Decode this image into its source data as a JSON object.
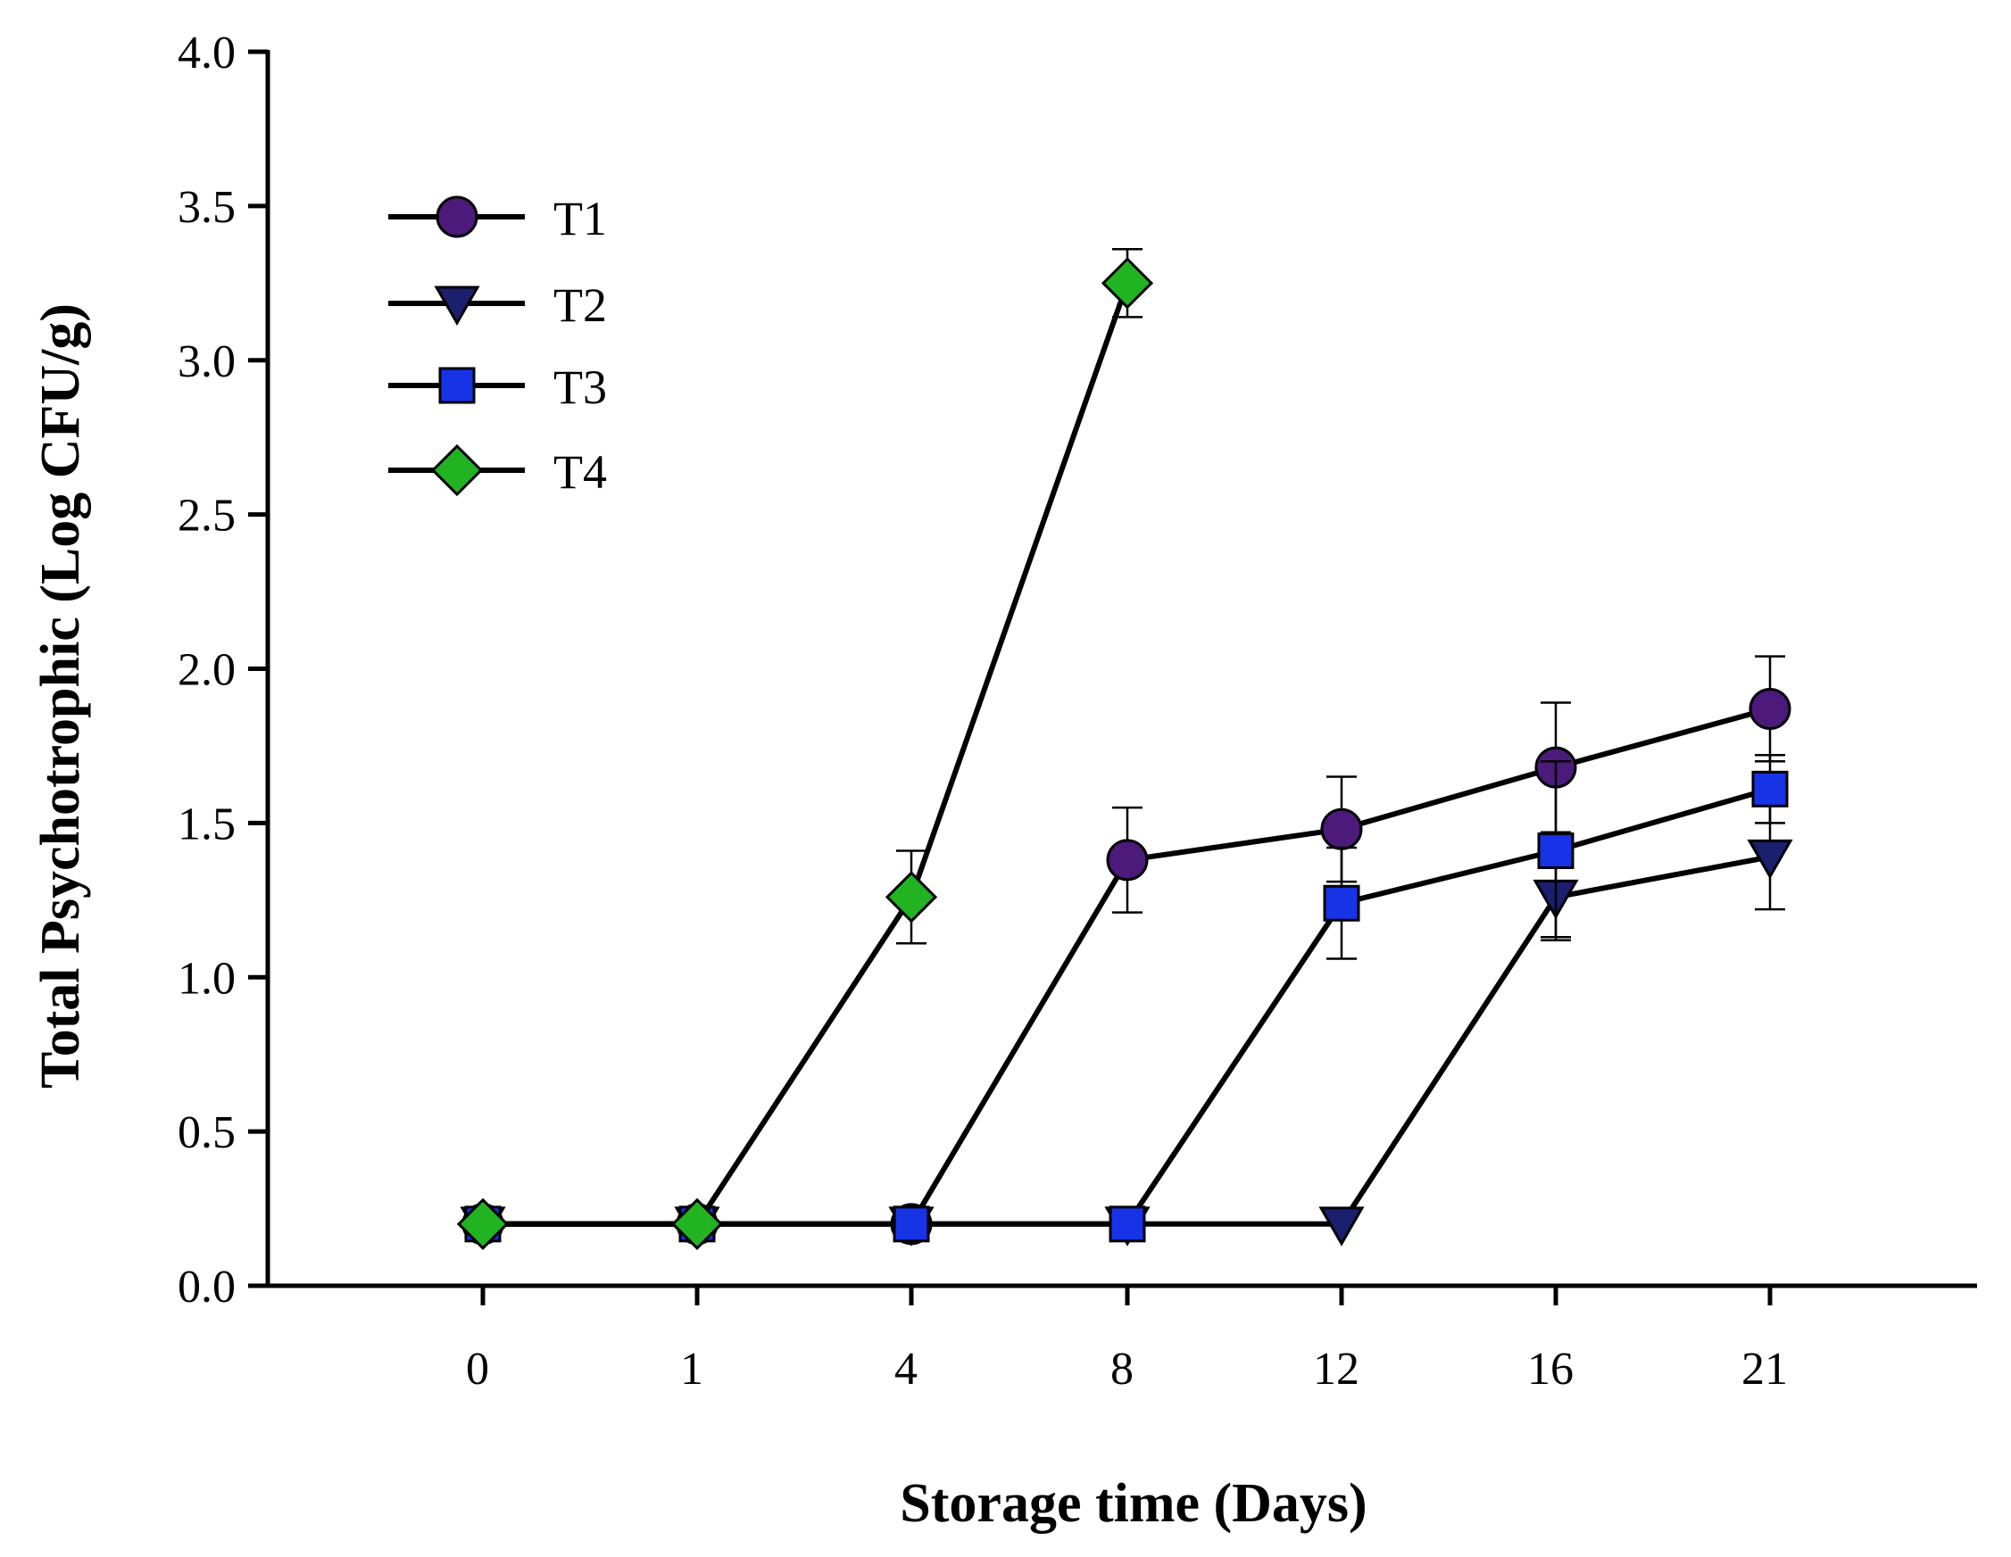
{
  "chart_data": {
    "type": "line",
    "title": "",
    "xlabel": "Storage time (Days)",
    "ylabel": "Total Psychotrophic (Log CFU/g)",
    "categories": [
      "0",
      "1",
      "4",
      "8",
      "12",
      "16",
      "21"
    ],
    "ylim": [
      0,
      4.0
    ],
    "yticks": [
      "0.0",
      "0.5",
      "1.0",
      "1.5",
      "2.0",
      "2.5",
      "3.0",
      "3.5",
      "4.0"
    ],
    "grid": false,
    "legend_position": "top-left",
    "series": [
      {
        "name": "T1",
        "marker": "circle",
        "color": "#4b1a7a",
        "values": [
          0.2,
          0.2,
          0.2,
          1.38,
          1.48,
          1.68,
          1.87
        ],
        "errors": [
          null,
          null,
          null,
          0.17,
          0.17,
          0.21,
          0.17
        ]
      },
      {
        "name": "T2",
        "marker": "triangle-down",
        "color": "#1a1f6e",
        "values": [
          0.2,
          0.2,
          0.2,
          0.2,
          0.2,
          1.26,
          1.39
        ],
        "errors": [
          null,
          null,
          null,
          null,
          null,
          0.13,
          0.17
        ]
      },
      {
        "name": "T3",
        "marker": "square",
        "color": "#1733e6",
        "values": [
          0.2,
          0.2,
          0.2,
          0.2,
          1.24,
          1.41,
          1.61
        ],
        "errors": [
          null,
          null,
          null,
          null,
          0.18,
          0.29,
          0.11
        ]
      },
      {
        "name": "T4",
        "marker": "diamond",
        "color": "#22b323",
        "values": [
          0.2,
          0.2,
          1.26,
          3.25,
          null,
          null,
          null
        ],
        "errors": [
          null,
          null,
          0.15,
          0.11,
          null,
          null,
          null
        ]
      }
    ]
  }
}
